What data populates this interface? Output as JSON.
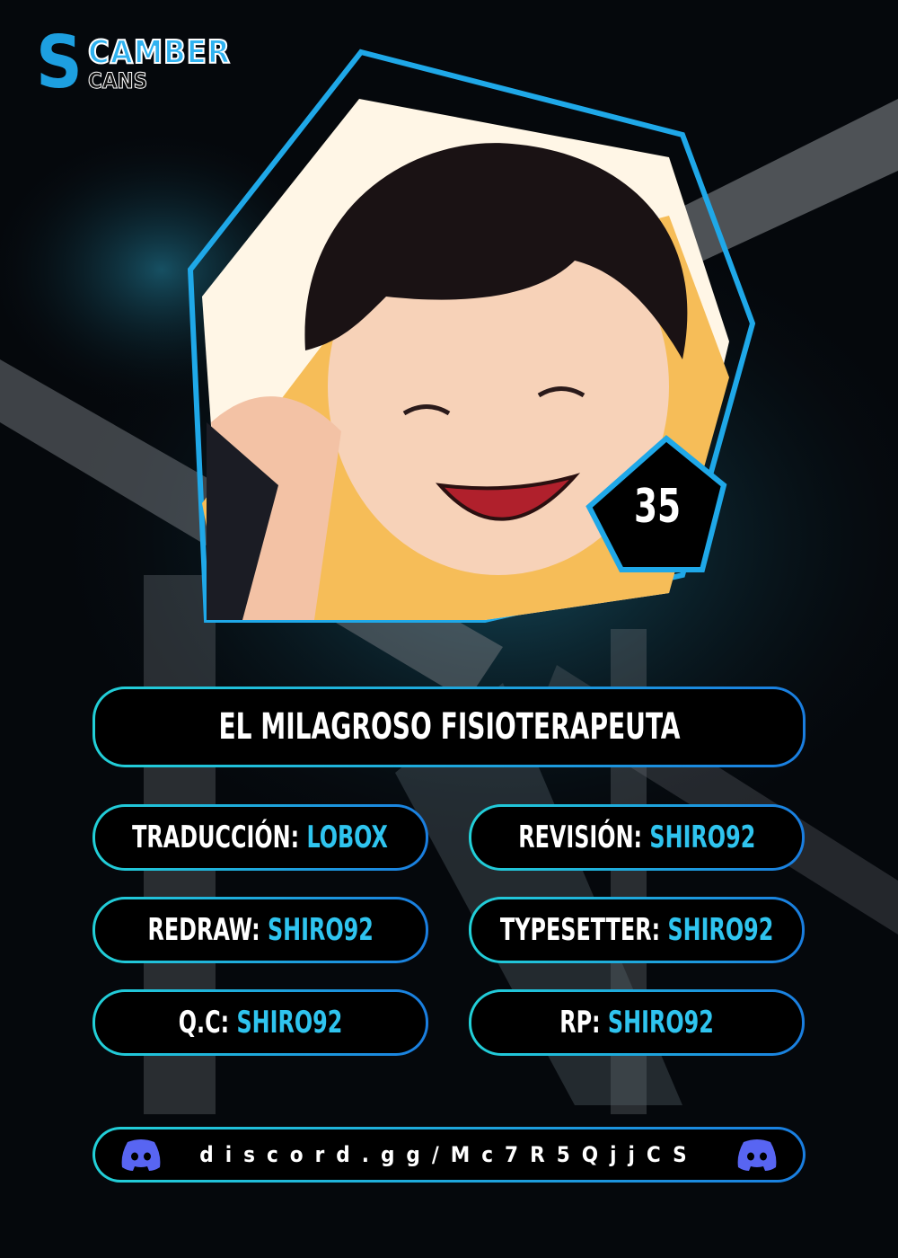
{
  "logo": {
    "line1": "CAMBER",
    "line2": "CANS",
    "initial": "S"
  },
  "chapter_number": "35",
  "title": "EL MILAGROSO FISIOTERAPEUTA",
  "credits": [
    {
      "label": "TRADUCCIÓN:",
      "value": "LOBOX"
    },
    {
      "label": "REVISIÓN:",
      "value": "SHIRO92"
    },
    {
      "label": "REDRAW:",
      "value": "SHIRO92"
    },
    {
      "label": "TYPESETTER:",
      "value": "SHIRO92"
    },
    {
      "label": "Q.C:",
      "value": "SHIRO92"
    },
    {
      "label": "RP:",
      "value": "SHIRO92"
    }
  ],
  "discord": {
    "link": "discord.gg/Mc7R5QjjCS",
    "icon": "discord-icon",
    "color": "#5865f2"
  },
  "colors": {
    "accent": "#2fc4ef",
    "border_start": "#22d0d8",
    "border_end": "#1a7ee0",
    "background": "#05080c"
  }
}
